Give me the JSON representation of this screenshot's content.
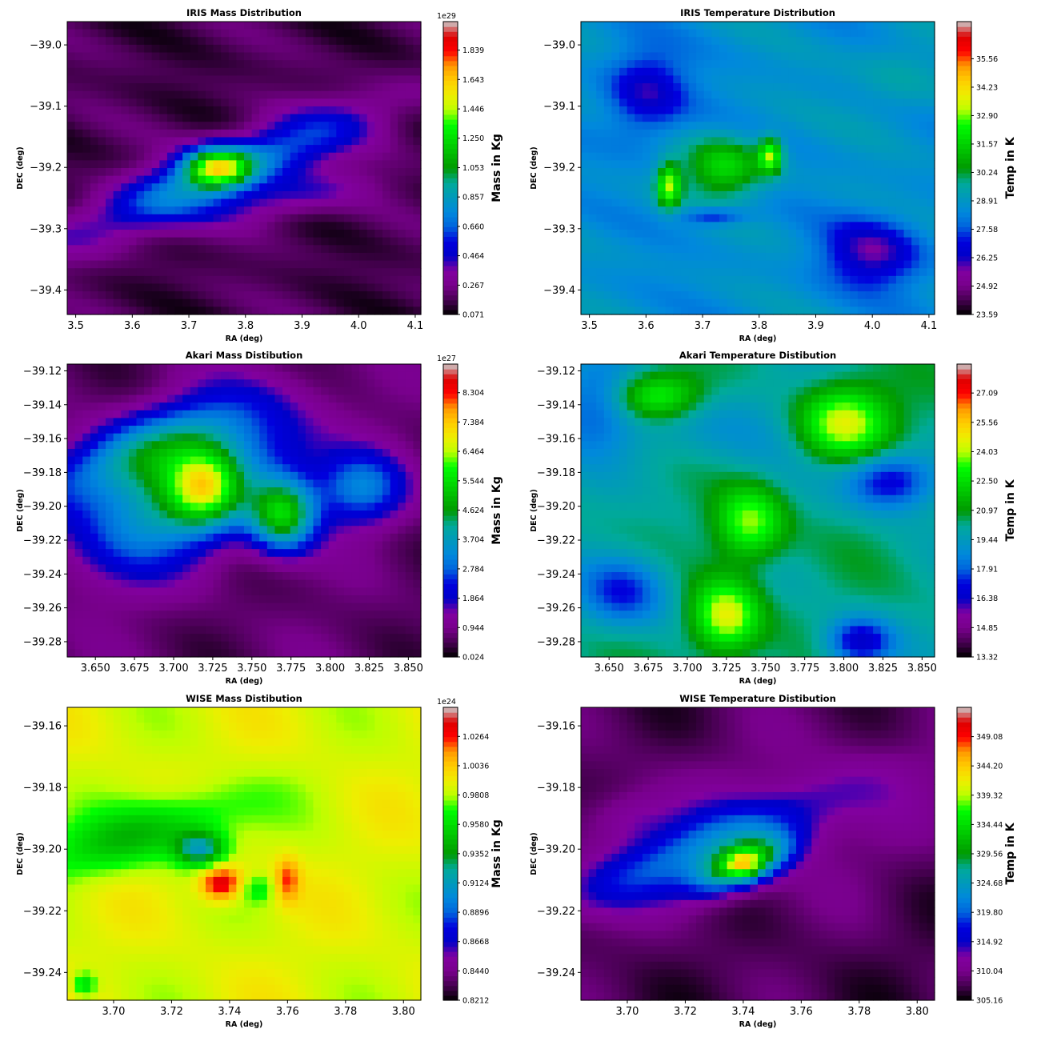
{
  "chart_data": [
    {
      "type": "heatmap",
      "title": "IRIS Mass Distribution",
      "xlabel": "RA (deg)",
      "ylabel": "DEC (deg)",
      "xlim": [
        3.485,
        4.11
      ],
      "ylim": [
        -39.44,
        -38.962
      ],
      "xticks": [
        3.5,
        3.6,
        3.7,
        3.8,
        3.9,
        4.0,
        4.1
      ],
      "xtick_labels": [
        "3.5",
        "3.6",
        "3.7",
        "3.8",
        "3.9",
        "4.0",
        "4.1"
      ],
      "yticks": [
        -39.0,
        -39.1,
        -39.2,
        -39.3,
        -39.4
      ],
      "ytick_labels": [
        "−39.0",
        "−39.1",
        "−39.2",
        "−39.3",
        "−39.4"
      ],
      "colorbar_label": "Mass in Kg",
      "colorbar_offset": "1e29",
      "colorbar_range": [
        0.071,
        2.03
      ],
      "colorbar_ticks": [
        "0.071",
        "0.267",
        "0.464",
        "0.660",
        "0.857",
        "1.053",
        "1.250",
        "1.446",
        "1.643",
        "1.839"
      ],
      "colormap": "nipy_spectral",
      "background_level": 0.05,
      "features": [
        {
          "x": 3.76,
          "y": -39.21,
          "sx": 0.19,
          "sy": 0.035,
          "rot": -20,
          "amp": 0.32
        },
        {
          "x": 3.88,
          "y": -39.25,
          "sx": 0.1,
          "sy": 0.025,
          "rot": -10,
          "amp": 0.12
        },
        {
          "x": 3.75,
          "y": -39.2,
          "sx": 0.04,
          "sy": 0.022,
          "rot": 0,
          "amp": 0.45
        }
      ]
    },
    {
      "type": "heatmap",
      "title": "IRIS Temperature Distribution",
      "xlabel": "RA (deg)",
      "ylabel": "DEC (deg)",
      "xlim": [
        3.485,
        4.11
      ],
      "ylim": [
        -39.44,
        -38.962
      ],
      "xticks": [
        3.5,
        3.6,
        3.7,
        3.8,
        3.9,
        4.0,
        4.1
      ],
      "xtick_labels": [
        "3.5",
        "3.6",
        "3.7",
        "3.8",
        "3.9",
        "4.0",
        "4.1"
      ],
      "yticks": [
        -39.0,
        -39.1,
        -39.2,
        -39.3,
        -39.4
      ],
      "ytick_labels": [
        "−39.0",
        "−39.1",
        "−39.2",
        "−39.3",
        "−39.4"
      ],
      "colorbar_label": "Temp in K",
      "colorbar_offset": "",
      "colorbar_range": [
        23.59,
        37.3
      ],
      "colorbar_ticks": [
        "23.59",
        "24.92",
        "26.25",
        "27.58",
        "28.91",
        "30.24",
        "31.57",
        "32.90",
        "34.23",
        "35.56"
      ],
      "colormap": "nipy_spectral",
      "background_level": 0.37,
      "features": [
        {
          "x": 3.74,
          "y": -39.2,
          "sx": 0.05,
          "sy": 0.035,
          "rot": 0,
          "amp": 0.22
        },
        {
          "x": 3.82,
          "y": -39.18,
          "sx": 0.015,
          "sy": 0.02,
          "rot": 0,
          "amp": 0.3
        },
        {
          "x": 3.64,
          "y": -39.23,
          "sx": 0.015,
          "sy": 0.025,
          "rot": 0,
          "amp": 0.3
        },
        {
          "x": 4.0,
          "y": -39.34,
          "sx": 0.06,
          "sy": 0.04,
          "rot": 0,
          "amp": -0.2
        },
        {
          "x": 3.6,
          "y": -39.08,
          "sx": 0.05,
          "sy": 0.05,
          "rot": 0,
          "amp": -0.18
        },
        {
          "x": 3.72,
          "y": -39.28,
          "sx": 0.04,
          "sy": 0.01,
          "rot": 0,
          "amp": -0.15
        },
        {
          "x": 4.05,
          "y": -39.05,
          "sx": 0.06,
          "sy": 0.05,
          "rot": 0,
          "amp": 0.06
        }
      ]
    },
    {
      "type": "heatmap",
      "title": "Akari Mass Distibution",
      "xlabel": "RA (deg)",
      "ylabel": "DEC (deg)",
      "xlim": [
        3.632,
        3.858
      ],
      "ylim": [
        -39.289,
        -39.116
      ],
      "xticks": [
        3.65,
        3.675,
        3.7,
        3.725,
        3.75,
        3.775,
        3.8,
        3.825,
        3.85
      ],
      "xtick_labels": [
        "3.650",
        "3.675",
        "3.700",
        "3.725",
        "3.750",
        "3.775",
        "3.800",
        "3.825",
        "3.850"
      ],
      "yticks": [
        -39.12,
        -39.14,
        -39.16,
        -39.18,
        -39.2,
        -39.22,
        -39.24,
        -39.26,
        -39.28
      ],
      "ytick_labels": [
        "−39.12",
        "−39.14",
        "−39.16",
        "−39.18",
        "−39.20",
        "−39.22",
        "−39.24",
        "−39.26",
        "−39.28"
      ],
      "colorbar_label": "Mass in Kg",
      "colorbar_offset": "1e27",
      "colorbar_range": [
        0.024,
        9.2
      ],
      "colorbar_ticks": [
        "0.024",
        "0.944",
        "1.864",
        "2.784",
        "3.704",
        "4.624",
        "5.544",
        "6.464",
        "7.384",
        "8.304"
      ],
      "colormap": "nipy_spectral",
      "background_level": 0.07,
      "features": [
        {
          "x": 3.71,
          "y": -39.19,
          "sx": 0.05,
          "sy": 0.025,
          "rot": -25,
          "amp": 0.4
        },
        {
          "x": 3.72,
          "y": -39.19,
          "sx": 0.015,
          "sy": 0.015,
          "rot": 0,
          "amp": 0.3
        },
        {
          "x": 3.77,
          "y": -39.205,
          "sx": 0.015,
          "sy": 0.015,
          "rot": -30,
          "amp": 0.45
        },
        {
          "x": 3.82,
          "y": -39.19,
          "sx": 0.02,
          "sy": 0.015,
          "rot": 0,
          "amp": 0.25
        },
        {
          "x": 3.67,
          "y": -39.17,
          "sx": 0.05,
          "sy": 0.015,
          "rot": -20,
          "amp": 0.25
        }
      ]
    },
    {
      "type": "heatmap",
      "title": "Akari Temperature Distibution",
      "xlabel": "RA (deg)",
      "ylabel": "DEC (deg)",
      "xlim": [
        3.632,
        3.858
      ],
      "ylim": [
        -39.289,
        -39.116
      ],
      "xticks": [
        3.65,
        3.675,
        3.7,
        3.725,
        3.75,
        3.775,
        3.8,
        3.825,
        3.85
      ],
      "xtick_labels": [
        "3.650",
        "3.675",
        "3.700",
        "3.725",
        "3.750",
        "3.775",
        "3.800",
        "3.825",
        "3.850"
      ],
      "yticks": [
        -39.12,
        -39.14,
        -39.16,
        -39.18,
        -39.2,
        -39.22,
        -39.24,
        -39.26,
        -39.28
      ],
      "ytick_labels": [
        "−39.12",
        "−39.14",
        "−39.16",
        "−39.18",
        "−39.20",
        "−39.22",
        "−39.24",
        "−39.26",
        "−39.28"
      ],
      "colorbar_label": "Temp in K",
      "colorbar_offset": "",
      "colorbar_range": [
        13.32,
        28.6
      ],
      "colorbar_ticks": [
        "13.32",
        "14.85",
        "16.38",
        "17.91",
        "19.44",
        "20.97",
        "22.50",
        "24.03",
        "25.56",
        "27.09"
      ],
      "colormap": "nipy_spectral",
      "background_level": 0.45,
      "features": [
        {
          "x": 3.8,
          "y": -39.15,
          "sx": 0.02,
          "sy": 0.015,
          "rot": 0,
          "amp": 0.3
        },
        {
          "x": 3.68,
          "y": -39.135,
          "sx": 0.02,
          "sy": 0.01,
          "rot": 0,
          "amp": 0.25
        },
        {
          "x": 3.725,
          "y": -39.265,
          "sx": 0.015,
          "sy": 0.015,
          "rot": 0,
          "amp": 0.3
        },
        {
          "x": 3.74,
          "y": -39.21,
          "sx": 0.015,
          "sy": 0.015,
          "rot": 0,
          "amp": 0.25
        },
        {
          "x": 3.83,
          "y": -39.185,
          "sx": 0.02,
          "sy": 0.012,
          "rot": 0,
          "amp": -0.25
        },
        {
          "x": 3.66,
          "y": -39.25,
          "sx": 0.02,
          "sy": 0.015,
          "rot": 0,
          "amp": -0.2
        },
        {
          "x": 3.72,
          "y": -39.15,
          "sx": 0.04,
          "sy": 0.02,
          "rot": 0,
          "amp": -0.08
        },
        {
          "x": 3.64,
          "y": -39.14,
          "sx": 0.02,
          "sy": 0.02,
          "rot": 0,
          "amp": -0.15
        },
        {
          "x": 3.81,
          "y": -39.28,
          "sx": 0.015,
          "sy": 0.01,
          "rot": 0,
          "amp": -0.25
        }
      ]
    },
    {
      "type": "heatmap",
      "title": "WISE Mass Distibution",
      "xlabel": "RA (deg)",
      "ylabel": "DEC (deg)",
      "xlim": [
        3.684,
        3.806
      ],
      "ylim": [
        -39.249,
        -39.154
      ],
      "xticks": [
        3.7,
        3.72,
        3.74,
        3.76,
        3.78,
        3.8
      ],
      "xtick_labels": [
        "3.70",
        "3.72",
        "3.74",
        "3.76",
        "3.78",
        "3.80"
      ],
      "yticks": [
        -39.16,
        -39.18,
        -39.2,
        -39.22,
        -39.24
      ],
      "ytick_labels": [
        "−39.16",
        "−39.18",
        "−39.20",
        "−39.22",
        "−39.24"
      ],
      "colorbar_label": "Mass in Kg",
      "colorbar_offset": "1e24",
      "colorbar_range": [
        0.8212,
        1.049
      ],
      "colorbar_ticks": [
        "0.8212",
        "0.8440",
        "0.8668",
        "0.8896",
        "0.9124",
        "0.9352",
        "0.9580",
        "0.9808",
        "1.0036",
        "1.0264"
      ],
      "colormap": "nipy_spectral",
      "background_level": 0.73,
      "features": [
        {
          "x": 3.71,
          "y": -39.195,
          "sx": 0.025,
          "sy": 0.007,
          "rot": -15,
          "amp": -0.18
        },
        {
          "x": 3.73,
          "y": -39.2,
          "sx": 0.006,
          "sy": 0.004,
          "rot": 0,
          "amp": -0.3
        },
        {
          "x": 3.737,
          "y": -39.211,
          "sx": 0.005,
          "sy": 0.004,
          "rot": 0,
          "amp": 0.25
        },
        {
          "x": 3.76,
          "y": -39.21,
          "sx": 0.003,
          "sy": 0.005,
          "rot": 0,
          "amp": 0.15
        },
        {
          "x": 3.69,
          "y": -39.244,
          "sx": 0.003,
          "sy": 0.003,
          "rot": 0,
          "amp": -0.15
        },
        {
          "x": 3.75,
          "y": -39.213,
          "sx": 0.004,
          "sy": 0.003,
          "rot": 0,
          "amp": -0.1
        }
      ]
    },
    {
      "type": "heatmap",
      "title": "WISE Temperature Distibution",
      "xlabel": "RA (deg)",
      "ylabel": "DEC (deg)",
      "xlim": [
        3.684,
        3.806
      ],
      "ylim": [
        -39.249,
        -39.154
      ],
      "xticks": [
        3.7,
        3.72,
        3.74,
        3.76,
        3.78,
        3.8
      ],
      "xtick_labels": [
        "3.70",
        "3.72",
        "3.74",
        "3.76",
        "3.78",
        "3.80"
      ],
      "yticks": [
        -39.16,
        -39.18,
        -39.2,
        -39.22,
        -39.24
      ],
      "ytick_labels": [
        "−39.16",
        "−39.18",
        "−39.20",
        "−39.22",
        "−39.24"
      ],
      "colorbar_label": "Temp in K",
      "colorbar_offset": "",
      "colorbar_range": [
        305.16,
        353.96
      ],
      "colorbar_ticks": [
        "305.16",
        "310.04",
        "314.92",
        "319.80",
        "324.68",
        "329.56",
        "334.44",
        "339.32",
        "344.20",
        "349.08"
      ],
      "colormap": "nipy_spectral",
      "background_level": 0.05,
      "features": [
        {
          "x": 3.725,
          "y": -39.2,
          "sx": 0.035,
          "sy": 0.007,
          "rot": -20,
          "amp": 0.22
        },
        {
          "x": 3.74,
          "y": -39.205,
          "sx": 0.012,
          "sy": 0.005,
          "rot": -20,
          "amp": 0.45
        },
        {
          "x": 3.74,
          "y": -39.205,
          "sx": 0.004,
          "sy": 0.003,
          "rot": 0,
          "amp": 0.2
        },
        {
          "x": 3.75,
          "y": -39.19,
          "sx": 0.06,
          "sy": 0.02,
          "rot": -10,
          "amp": 0.06
        },
        {
          "x": 3.7,
          "y": -39.19,
          "sx": 0.01,
          "sy": 0.006,
          "rot": 0,
          "amp": 0.08
        }
      ]
    }
  ]
}
